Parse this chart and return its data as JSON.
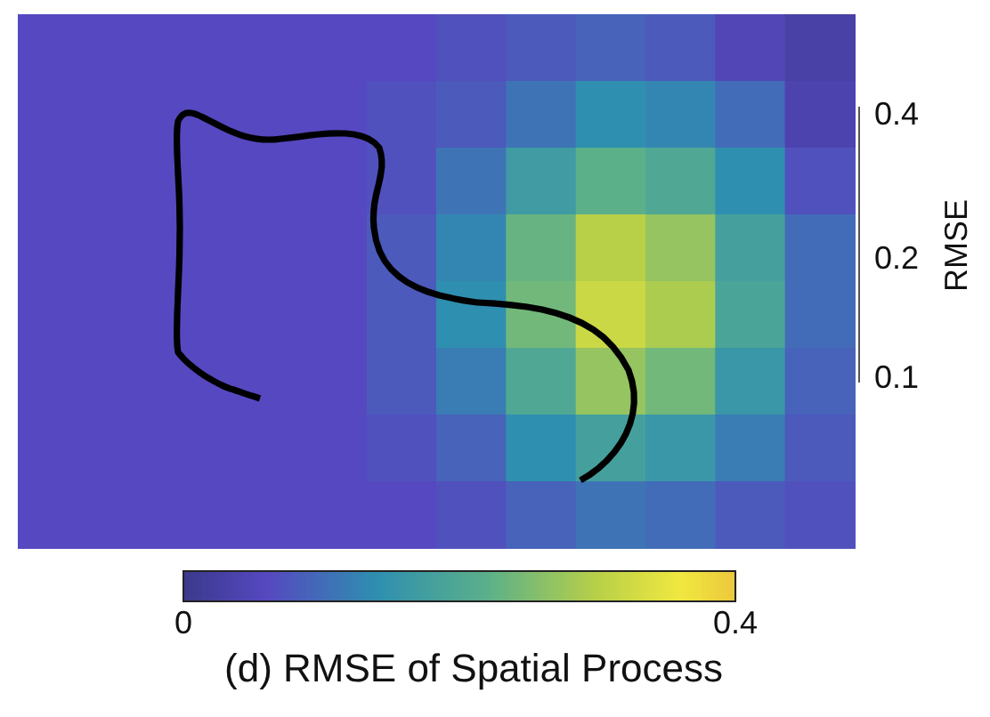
{
  "chart_data": {
    "type": "heatmap",
    "title": "(d) RMSE of Spatial Process",
    "categories": [
      null,
      null,
      null,
      null,
      null,
      null,
      null,
      null,
      null,
      null,
      null,
      null
    ],
    "y_categories": [
      null,
      null,
      null,
      null,
      null,
      null,
      null,
      null
    ],
    "cells": [
      [
        0.06,
        0.06,
        0.06,
        0.06,
        0.06,
        0.06,
        0.07,
        0.08,
        0.09,
        0.08,
        0.05,
        0.03
      ],
      [
        0.06,
        0.06,
        0.06,
        0.06,
        0.06,
        0.07,
        0.08,
        0.11,
        0.14,
        0.13,
        0.1,
        0.04
      ],
      [
        0.06,
        0.06,
        0.06,
        0.06,
        0.06,
        0.07,
        0.11,
        0.17,
        0.22,
        0.2,
        0.14,
        0.07
      ],
      [
        0.06,
        0.06,
        0.06,
        0.06,
        0.06,
        0.08,
        0.13,
        0.23,
        0.3,
        0.27,
        0.18,
        0.1
      ],
      [
        0.06,
        0.06,
        0.06,
        0.06,
        0.06,
        0.08,
        0.14,
        0.24,
        0.32,
        0.29,
        0.19,
        0.1
      ],
      [
        0.06,
        0.06,
        0.06,
        0.06,
        0.06,
        0.08,
        0.12,
        0.2,
        0.27,
        0.24,
        0.16,
        0.09
      ],
      [
        0.06,
        0.06,
        0.06,
        0.06,
        0.06,
        0.07,
        0.09,
        0.14,
        0.18,
        0.16,
        0.12,
        0.08
      ],
      [
        0.06,
        0.06,
        0.06,
        0.06,
        0.06,
        0.06,
        0.07,
        0.09,
        0.11,
        0.1,
        0.08,
        0.07
      ]
    ],
    "clim": [
      0,
      0.4
    ],
    "cticks": [
      0,
      0.4
    ],
    "y2label": "RMSE",
    "annotations": [
      "0.4",
      "0.2",
      "0.1"
    ]
  }
}
